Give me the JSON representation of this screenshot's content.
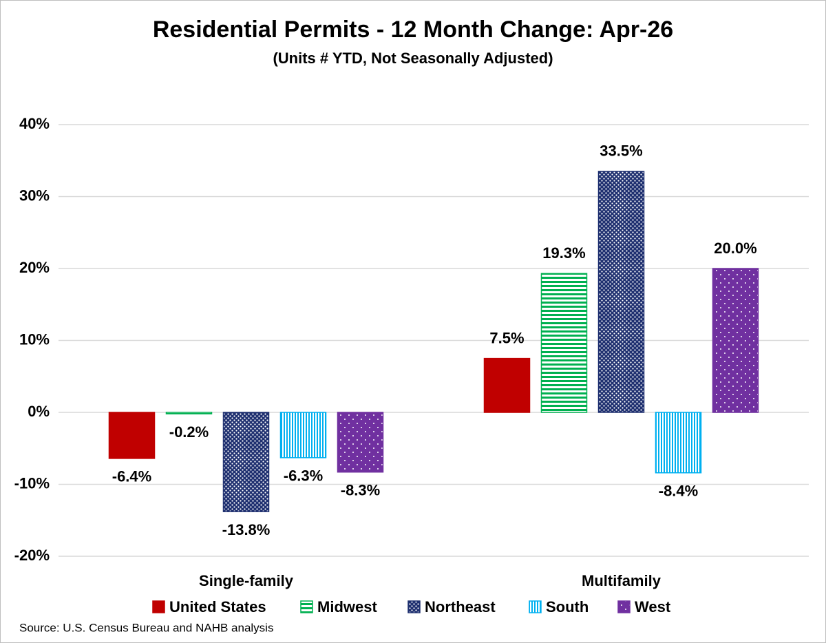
{
  "chart_data": {
    "type": "bar",
    "title": "Residential Permits - 12 Month Change:  Apr-26",
    "subtitle": "(Units # YTD, Not Seasonally Adjusted)",
    "categories": [
      "Single-family",
      "Multifamily"
    ],
    "series": [
      {
        "name": "United States",
        "color": "#c00000",
        "pattern": "solid",
        "values": [
          -6.4,
          7.5
        ],
        "value_labels": [
          "-6.4%",
          "7.5%"
        ]
      },
      {
        "name": "Midwest",
        "color": "#00b050",
        "pattern": "horizontal-stripes",
        "values": [
          -0.2,
          19.3
        ],
        "value_labels": [
          "-0.2%",
          "19.3%"
        ]
      },
      {
        "name": "Northeast",
        "color": "#1f3070",
        "pattern": "dots",
        "values": [
          -13.8,
          33.5
        ],
        "value_labels": [
          "-13.8%",
          "33.5%"
        ]
      },
      {
        "name": "South",
        "color": "#00b0f0",
        "pattern": "vertical-stripes",
        "values": [
          -6.3,
          -8.4
        ],
        "value_labels": [
          "-6.3%",
          "-8.4%"
        ]
      },
      {
        "name": "West",
        "color": "#7030a0",
        "pattern": "dots",
        "values": [
          -8.3,
          20.0
        ],
        "value_labels": [
          "-8.3%",
          "20.0%"
        ]
      }
    ],
    "ylim": [
      -20,
      40
    ],
    "yticks": [
      {
        "value": -20,
        "label": "-20%"
      },
      {
        "value": -10,
        "label": "-10%"
      },
      {
        "value": 0,
        "label": "0%"
      },
      {
        "value": 10,
        "label": "10%"
      },
      {
        "value": 20,
        "label": "20%"
      },
      {
        "value": 30,
        "label": "30%"
      },
      {
        "value": 40,
        "label": "40%"
      }
    ],
    "grid": true,
    "legend": "bottom",
    "source": "Source: U.S. Census Bureau and NAHB analysis"
  }
}
